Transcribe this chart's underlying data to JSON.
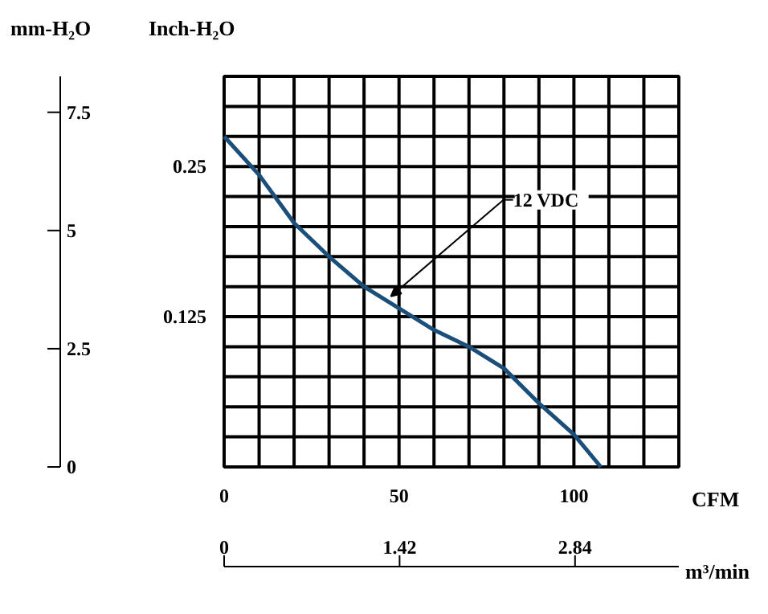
{
  "chart_data": {
    "type": "line",
    "xlabel": "CFM",
    "ylabel": "Inch-H₂O",
    "y2label": "mm-H₂O",
    "x2label": "m³/min",
    "x": [
      0,
      10,
      20,
      30,
      40,
      50,
      60,
      70,
      80,
      90,
      100,
      107.7
    ],
    "series": [
      {
        "color": "#1b4f7a",
        "values": [
          0.275,
          0.243,
          0.203,
          0.175,
          0.15,
          0.132,
          0.114,
          0.1,
          0.082,
          0.053,
          0.027,
          0
        ]
      }
    ],
    "xlim": [
      0,
      130
    ],
    "xticks": [
      0,
      {
        "value": 10,
        "label": null
      },
      {
        "value": 20,
        "label": null
      },
      {
        "value": 30,
        "label": null
      },
      {
        "value": 40,
        "label": null
      },
      50,
      {
        "value": 60,
        "label": null
      },
      {
        "value": 70,
        "label": null
      },
      {
        "value": 80,
        "label": null
      },
      {
        "value": 90,
        "label": null
      },
      100,
      {
        "value": 110,
        "label": null
      },
      {
        "value": 120,
        "label": null
      },
      {
        "value": 130,
        "label": null
      }
    ],
    "ylim": [
      0,
      0.325
    ],
    "yticks": [
      {
        "value": 0,
        "label": null
      },
      {
        "value": 0.025,
        "label": null
      },
      {
        "value": 0.05,
        "label": null
      },
      {
        "value": 0.075,
        "label": null
      },
      {
        "value": 0.1,
        "label": null
      },
      0.125,
      {
        "value": 0.15,
        "label": null
      },
      {
        "value": 0.175,
        "label": null
      },
      {
        "value": 0.2,
        "label": null
      },
      {
        "value": 0.225,
        "label": null
      },
      0.25,
      {
        "value": 0.275,
        "label": null
      },
      {
        "value": 0.3,
        "label": null
      },
      {
        "value": 0.325,
        "label": null
      }
    ],
    "y2lim": [
      0,
      8.26
    ],
    "y2ticks": [
      0,
      2.5,
      5,
      7.5
    ],
    "x2lim": [
      0,
      3.68
    ],
    "x2ticks": [
      0,
      1.42,
      2.84
    ],
    "grid": true,
    "line_style": "solid",
    "annotations": [
      {
        "text": "12 VDC",
        "x": 47.7,
        "y": 0.142
      }
    ]
  }
}
